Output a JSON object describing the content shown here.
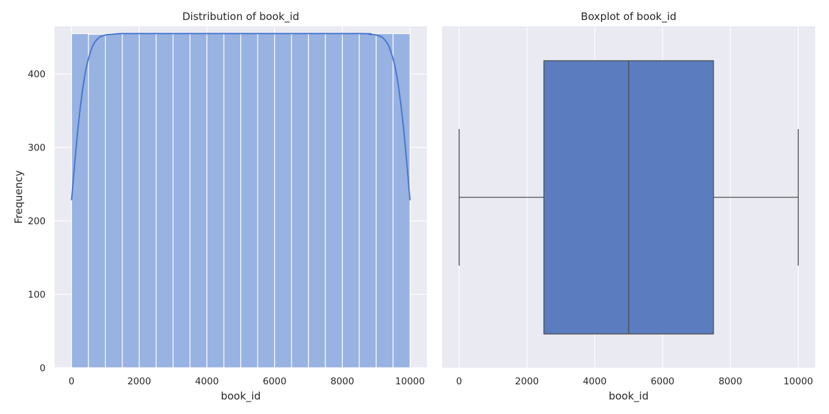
{
  "style": {
    "panel_background": "#eaeaf2",
    "grid_color": "#ffffff",
    "hist_fill": "#98b2e1",
    "kde_color": "#4878cf",
    "box_fill": "#5b7dbf",
    "box_line": "#4c4c4c"
  },
  "chart_data": [
    {
      "type": "histogram",
      "title": "Distribution of book_id",
      "xlabel": "book_id",
      "ylabel": "Frequency",
      "xlim": [
        -500,
        10500
      ],
      "ylim": [
        0,
        465
      ],
      "xticks": [
        0,
        2000,
        4000,
        6000,
        8000,
        10000
      ],
      "yticks": [
        0,
        100,
        200,
        300,
        400
      ],
      "grid": true,
      "bins": {
        "edges": [
          1,
          500.95,
          1000.9,
          1500.85,
          2000.8,
          2500.75,
          3000.7,
          3500.65,
          4000.6,
          4500.55,
          5000.5,
          5500.45,
          6000.4,
          6500.35,
          7000.3,
          7500.25,
          8000.2,
          8500.15,
          9000.1,
          9500.05,
          10000
        ],
        "counts": [
          455,
          454,
          455,
          455,
          455,
          455,
          455,
          455,
          455,
          455,
          455,
          455,
          455,
          455,
          455,
          455,
          455,
          455,
          455,
          455
        ]
      },
      "kde": {
        "x": [
          1,
          200,
          400,
          600,
          800,
          1000,
          1200,
          1500,
          2000,
          5000,
          8500,
          8800,
          9000,
          9200,
          9400,
          9600,
          9800,
          10000
        ],
        "y": [
          228,
          330,
          400,
          435,
          449,
          453,
          454,
          455,
          455,
          455,
          455,
          454,
          453,
          449,
          435,
          400,
          330,
          228
        ]
      }
    },
    {
      "type": "boxplot",
      "title": "Boxplot of book_id",
      "xlabel": "book_id",
      "xlim": [
        -500,
        10500
      ],
      "xticks": [
        0,
        2000,
        4000,
        6000,
        8000,
        10000
      ],
      "grid": true,
      "box": {
        "min": 1,
        "q1": 2500.75,
        "median": 5000.5,
        "q3": 7500.25,
        "max": 10000
      }
    }
  ]
}
